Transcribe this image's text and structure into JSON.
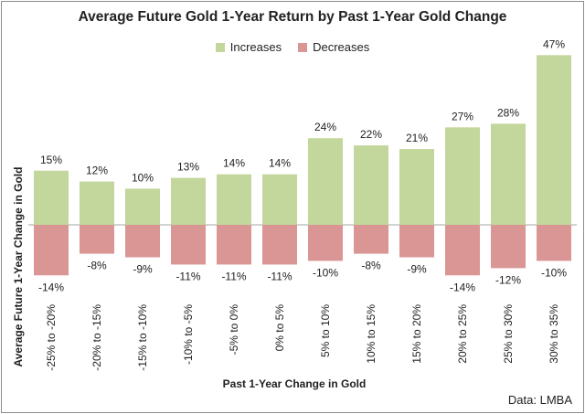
{
  "chart_data": {
    "type": "bar",
    "title": "Average Future Gold 1-Year Return by Past 1-Year Gold Change",
    "xlabel": "Past 1-Year Change in Gold",
    "ylabel": "Average Future 1-Year Change in Gold",
    "categories": [
      "-25% to -20%",
      "-20% to -15%",
      "-15% to -10%",
      "-10% to -5%",
      "-5% to 0%",
      "0% to 5%",
      "5% to 10%",
      "10% to 15%",
      "15% to 20%",
      "20% to 25%",
      "25% to 30%",
      "30% to 35%"
    ],
    "series": [
      {
        "name": "Increases",
        "color": "#c3d69b",
        "values": [
          15,
          12,
          10,
          13,
          14,
          14,
          24,
          22,
          21,
          27,
          28,
          47
        ],
        "labels": [
          "15%",
          "12%",
          "10%",
          "13%",
          "14%",
          "14%",
          "24%",
          "22%",
          "21%",
          "27%",
          "28%",
          "47%"
        ]
      },
      {
        "name": "Decreases",
        "color": "#d99694",
        "values": [
          -14,
          -8,
          -9,
          -11,
          -11,
          -11,
          -10,
          -8,
          -9,
          -14,
          -12,
          -10
        ],
        "labels": [
          "-14%",
          "-8%",
          "-9%",
          "-11%",
          "-11%",
          "-11%",
          "-10%",
          "-8%",
          "-9%",
          "-14%",
          "-12%",
          "-10%"
        ]
      }
    ],
    "grid": false,
    "legend": "top-center"
  },
  "source_note": "Data: LMBA"
}
